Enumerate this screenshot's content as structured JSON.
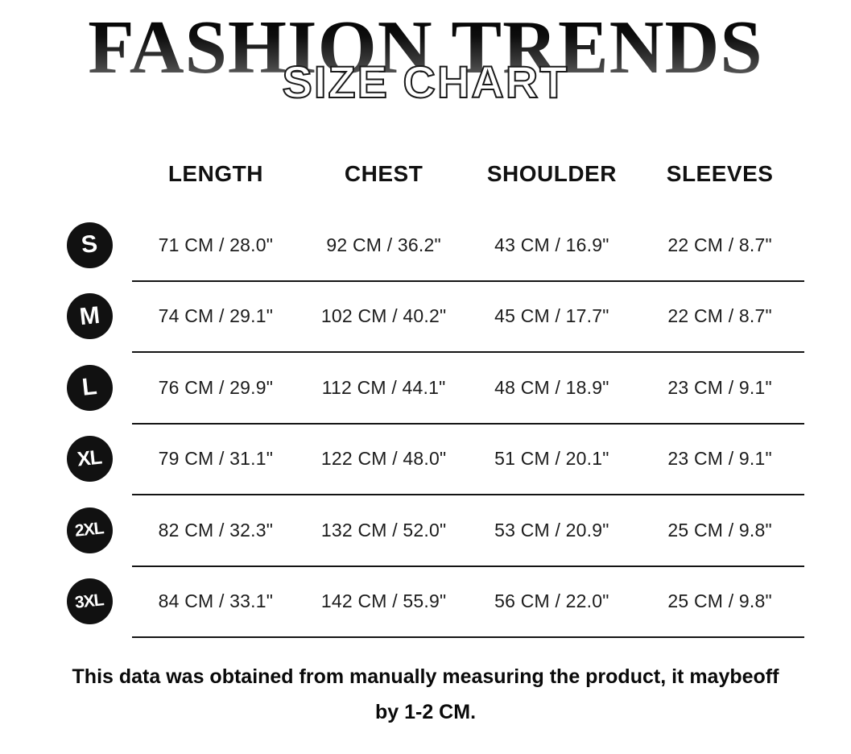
{
  "header": {
    "brand": "FASHION TRENDS",
    "subtitle": "SIZE CHART"
  },
  "chart_data": {
    "type": "table",
    "title": "FASHION TRENDS SIZE CHART",
    "columns": [
      "LENGTH",
      "CHEST",
      "SHOULDER",
      "SLEEVES"
    ],
    "sizes": [
      "S",
      "M",
      "L",
      "XL",
      "2XL",
      "3XL"
    ],
    "rows": [
      [
        "71 CM / 28.0\"",
        "92 CM / 36.2\"",
        "43 CM / 16.9\"",
        "22 CM / 8.7\""
      ],
      [
        "74 CM / 29.1\"",
        "102 CM / 40.2\"",
        "45 CM / 17.7\"",
        "22 CM / 8.7\""
      ],
      [
        "76 CM / 29.9\"",
        "112 CM / 44.1\"",
        "48 CM / 18.9\"",
        "23 CM / 9.1\""
      ],
      [
        "79 CM / 31.1\"",
        "122 CM / 48.0\"",
        "51 CM / 20.1\"",
        "23 CM / 9.1\""
      ],
      [
        "82 CM / 32.3\"",
        "132 CM / 52.0\"",
        "53 CM / 20.9\"",
        "25 CM / 9.8\""
      ],
      [
        "84 CM / 33.1\"",
        "142 CM / 55.9\"",
        "56 CM / 22.0\"",
        "25 CM / 9.8\""
      ]
    ]
  },
  "footer": {
    "note_line1": "This data was obtained from manually measuring the product, it maybeoff",
    "note_line2": "by 1-2 CM."
  },
  "colors": {
    "background": "#ffffff",
    "badge_bg": "#111111",
    "badge_text": "#ffffff",
    "text": "#1a1a1a",
    "divider": "#141414",
    "title_gradient_top": "#000000",
    "title_gradient_bottom": "#6e6e6e"
  }
}
